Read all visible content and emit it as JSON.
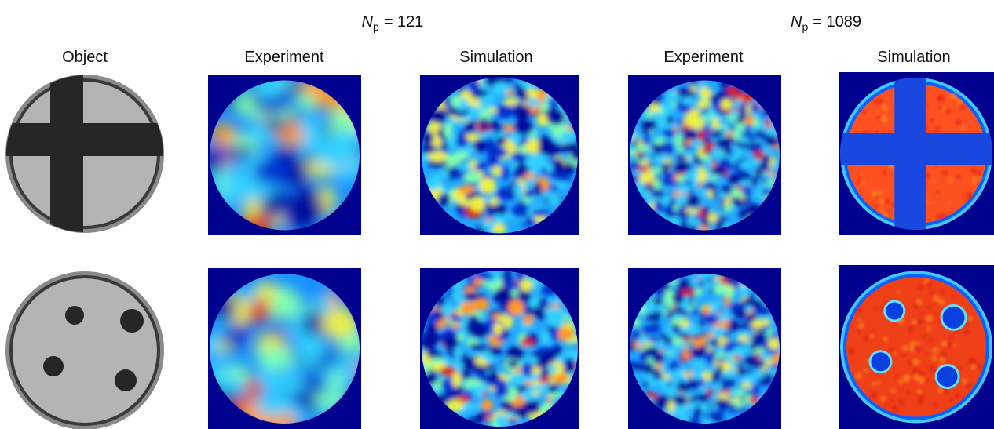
{
  "groups": [
    {
      "symbol": "N",
      "subscript": "p",
      "label_rest": "= 121"
    },
    {
      "symbol": "N",
      "subscript": "p",
      "label_rest": "= 1089"
    }
  ],
  "columns": [
    "Object",
    "Experiment",
    "Simulation",
    "Experiment",
    "Simulation"
  ]
}
